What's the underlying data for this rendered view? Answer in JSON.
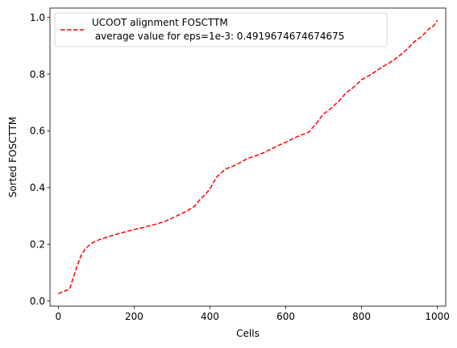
{
  "chart_data": {
    "type": "line",
    "xlabel": "Cells",
    "ylabel": "Sorted FOSCTTM",
    "xlim": [
      -22,
      1022
    ],
    "ylim": [
      -0.018,
      1.033
    ],
    "xticks": [
      0,
      200,
      400,
      600,
      800,
      1000
    ],
    "xtick_labels": [
      "0",
      "200",
      "400",
      "600",
      "800",
      "1000"
    ],
    "yticks": [
      0.0,
      0.2,
      0.4,
      0.6,
      0.8,
      1.0
    ],
    "ytick_labels": [
      "0.0",
      "0.2",
      "0.4",
      "0.6",
      "0.8",
      "1.0"
    ],
    "grid": false,
    "legend_position": "top-left",
    "legend_lines": [
      "UCOOT alignment FOSCTTM",
      " average value for eps=1e-3: 0.4919674674674675"
    ],
    "series": [
      {
        "name": "UCOOT alignment FOSCTTM\n average value for eps=1e-3: 0.4919674674674675",
        "color": "#ff0000",
        "line_style": "dashed",
        "x": [
          0,
          10,
          20,
          30,
          40,
          50,
          60,
          70,
          80,
          90,
          100,
          120,
          140,
          160,
          180,
          200,
          220,
          240,
          260,
          280,
          300,
          320,
          340,
          360,
          375,
          385,
          400,
          410,
          420,
          430,
          440,
          460,
          480,
          500,
          520,
          540,
          560,
          580,
          600,
          620,
          640,
          660,
          670,
          680,
          690,
          700,
          710,
          720,
          740,
          760,
          780,
          800,
          820,
          840,
          860,
          880,
          900,
          920,
          940,
          960,
          980,
          990,
          1000
        ],
        "y": [
          0.025,
          0.032,
          0.037,
          0.043,
          0.085,
          0.125,
          0.16,
          0.182,
          0.195,
          0.205,
          0.212,
          0.222,
          0.23,
          0.238,
          0.245,
          0.252,
          0.258,
          0.265,
          0.272,
          0.28,
          0.292,
          0.305,
          0.318,
          0.335,
          0.36,
          0.372,
          0.395,
          0.42,
          0.44,
          0.452,
          0.465,
          0.475,
          0.488,
          0.503,
          0.512,
          0.522,
          0.535,
          0.548,
          0.56,
          0.573,
          0.585,
          0.595,
          0.61,
          0.625,
          0.643,
          0.66,
          0.67,
          0.68,
          0.705,
          0.735,
          0.755,
          0.78,
          0.795,
          0.812,
          0.83,
          0.845,
          0.865,
          0.888,
          0.915,
          0.935,
          0.962,
          0.97,
          0.99
        ]
      }
    ]
  }
}
